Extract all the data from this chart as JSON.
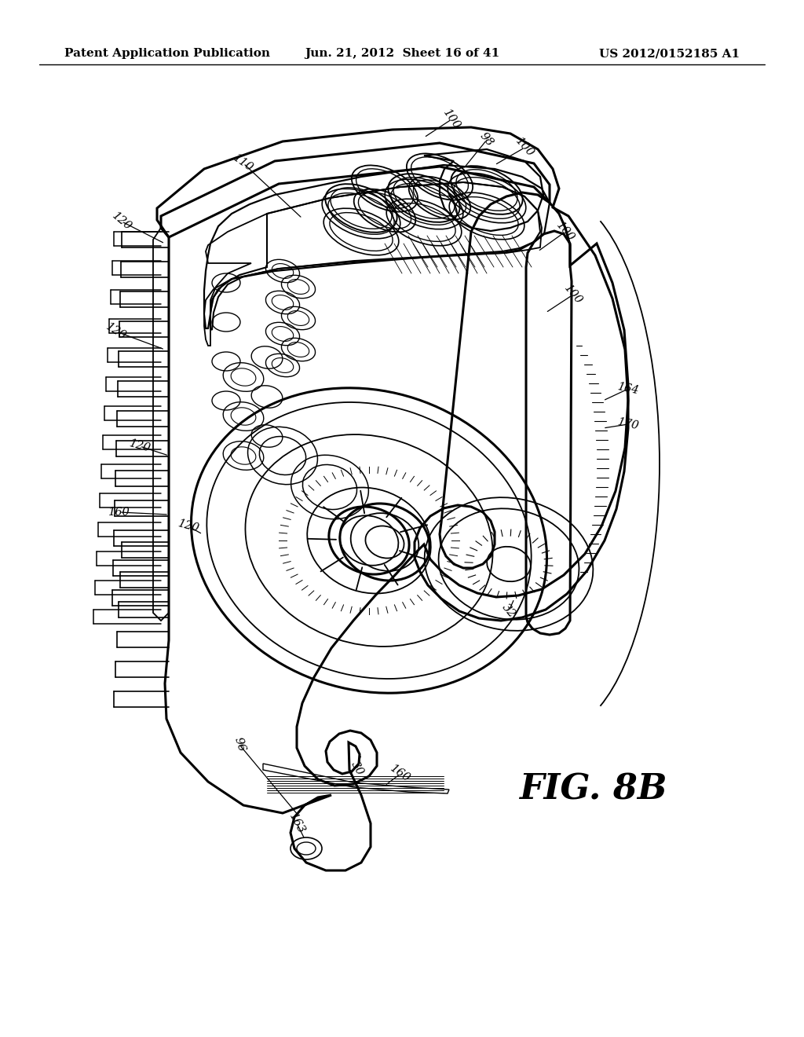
{
  "background_color": "#ffffff",
  "header_left": "Patent Application Publication",
  "header_center": "Jun. 21, 2012  Sheet 16 of 41",
  "header_right": "US 2012/0152185 A1",
  "figure_label": "FIG. 8B",
  "header_fontsize": 11,
  "label_fontsize": 10.5,
  "fig_label_fontsize": 32
}
